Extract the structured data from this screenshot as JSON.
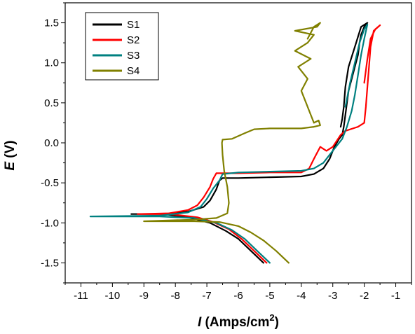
{
  "chart_data": {
    "type": "line",
    "xlabel_italic": "I",
    "xlabel_rest": " (Amps/cm",
    "xlabel_sup": "2",
    "xlabel_close": ")",
    "ylabel_italic": "E",
    "ylabel_rest": " (V)",
    "xlim": [
      -11.5,
      -0.5
    ],
    "ylim": [
      -1.75,
      1.75
    ],
    "x_ticks": [
      -11,
      -10,
      -9,
      -8,
      -7,
      -6,
      -5,
      -4,
      -3,
      -2,
      -1
    ],
    "x_tick_labels": [
      "-11",
      "-10",
      "-9",
      "-8",
      "-7",
      "-6",
      "-5",
      "-4",
      "-3",
      "-2",
      "-1"
    ],
    "y_ticks": [
      -1.5,
      -1.0,
      -0.5,
      0.0,
      0.5,
      1.0,
      1.5
    ],
    "y_tick_labels": [
      "-1.5",
      "-1.0",
      "-0.5",
      "0.0",
      "0.5",
      "1.0",
      "1.5"
    ],
    "grid": false,
    "legend_position": "top-left",
    "series": [
      {
        "name": "S1",
        "color": "#000000",
        "points": [
          [
            -5.2,
            -1.5
          ],
          [
            -5.6,
            -1.35
          ],
          [
            -6.0,
            -1.2
          ],
          [
            -6.4,
            -1.1
          ],
          [
            -6.9,
            -1.0
          ],
          [
            -7.6,
            -0.93
          ],
          [
            -8.4,
            -0.89
          ],
          [
            -9.4,
            -0.89
          ],
          [
            -8.4,
            -0.89
          ],
          [
            -7.6,
            -0.86
          ],
          [
            -7.1,
            -0.8
          ],
          [
            -6.9,
            -0.72
          ],
          [
            -6.7,
            -0.58
          ],
          [
            -6.6,
            -0.47
          ],
          [
            -6.5,
            -0.44
          ],
          [
            -6.0,
            -0.44
          ],
          [
            -5.0,
            -0.43
          ],
          [
            -4.0,
            -0.42
          ],
          [
            -3.6,
            -0.39
          ],
          [
            -3.3,
            -0.32
          ],
          [
            -3.1,
            -0.2
          ],
          [
            -2.95,
            -0.05
          ],
          [
            -2.8,
            0.05
          ],
          [
            -2.7,
            0.1
          ],
          [
            -2.65,
            0.2
          ],
          [
            -2.6,
            0.35
          ],
          [
            -2.55,
            0.5
          ],
          [
            -2.5,
            0.65
          ],
          [
            -2.4,
            0.8
          ],
          [
            -2.3,
            0.95
          ],
          [
            -2.2,
            1.1
          ],
          [
            -2.15,
            1.25
          ],
          [
            -2.1,
            1.35
          ],
          [
            -2.0,
            1.45
          ],
          [
            -1.9,
            1.5
          ],
          [
            -2.1,
            1.45
          ],
          [
            -2.3,
            1.2
          ],
          [
            -2.5,
            0.95
          ],
          [
            -2.6,
            0.7
          ],
          [
            -2.65,
            0.45
          ],
          [
            -2.7,
            0.3
          ],
          [
            -2.75,
            0.2
          ]
        ]
      },
      {
        "name": "S2",
        "color": "#ff0000",
        "points": [
          [
            -5.1,
            -1.5
          ],
          [
            -5.5,
            -1.35
          ],
          [
            -5.9,
            -1.2
          ],
          [
            -6.3,
            -1.08
          ],
          [
            -6.8,
            -0.99
          ],
          [
            -7.3,
            -0.93
          ],
          [
            -8.2,
            -0.89
          ],
          [
            -9.2,
            -0.89
          ],
          [
            -8.2,
            -0.88
          ],
          [
            -7.6,
            -0.84
          ],
          [
            -7.3,
            -0.78
          ],
          [
            -7.1,
            -0.68
          ],
          [
            -6.9,
            -0.55
          ],
          [
            -6.8,
            -0.45
          ],
          [
            -6.7,
            -0.38
          ],
          [
            -6.0,
            -0.38
          ],
          [
            -5.0,
            -0.37
          ],
          [
            -4.0,
            -0.37
          ],
          [
            -3.75,
            -0.32
          ],
          [
            -3.6,
            -0.2
          ],
          [
            -3.4,
            -0.05
          ],
          [
            -3.2,
            -0.1
          ],
          [
            -3.0,
            -0.05
          ],
          [
            -2.75,
            0.1
          ],
          [
            -2.6,
            0.15
          ],
          [
            -2.2,
            0.2
          ],
          [
            -2.0,
            0.25
          ],
          [
            -1.95,
            0.45
          ],
          [
            -1.9,
            0.7
          ],
          [
            -1.85,
            0.95
          ],
          [
            -1.8,
            1.2
          ],
          [
            -1.7,
            1.4
          ],
          [
            -1.5,
            1.47
          ],
          [
            -1.65,
            1.42
          ],
          [
            -1.8,
            1.3
          ],
          [
            -1.9,
            1.05
          ],
          [
            -2.0,
            0.75
          ]
        ]
      },
      {
        "name": "S3",
        "color": "#008080",
        "points": [
          [
            -5.0,
            -1.5
          ],
          [
            -5.4,
            -1.35
          ],
          [
            -5.8,
            -1.2
          ],
          [
            -6.2,
            -1.09
          ],
          [
            -6.7,
            -1.0
          ],
          [
            -7.4,
            -0.94
          ],
          [
            -8.5,
            -0.92
          ],
          [
            -10.7,
            -0.92
          ],
          [
            -8.5,
            -0.91
          ],
          [
            -7.6,
            -0.87
          ],
          [
            -7.2,
            -0.8
          ],
          [
            -7.0,
            -0.7
          ],
          [
            -6.8,
            -0.57
          ],
          [
            -6.6,
            -0.47
          ],
          [
            -6.5,
            -0.39
          ],
          [
            -6.0,
            -0.37
          ],
          [
            -5.0,
            -0.36
          ],
          [
            -4.0,
            -0.35
          ],
          [
            -3.6,
            -0.32
          ],
          [
            -3.3,
            -0.25
          ],
          [
            -3.1,
            -0.15
          ],
          [
            -2.9,
            -0.05
          ],
          [
            -2.7,
            0.05
          ],
          [
            -2.55,
            0.2
          ],
          [
            -2.4,
            0.4
          ],
          [
            -2.3,
            0.6
          ],
          [
            -2.2,
            0.85
          ],
          [
            -2.1,
            1.1
          ],
          [
            -2.0,
            1.3
          ],
          [
            -1.9,
            1.48
          ],
          [
            -2.0,
            1.42
          ],
          [
            -2.15,
            1.25
          ],
          [
            -2.3,
            1.0
          ],
          [
            -2.45,
            0.75
          ],
          [
            -2.6,
            0.45
          ]
        ]
      },
      {
        "name": "S4",
        "color": "#808000",
        "points": [
          [
            -4.4,
            -1.5
          ],
          [
            -4.8,
            -1.35
          ],
          [
            -5.2,
            -1.22
          ],
          [
            -5.6,
            -1.12
          ],
          [
            -6.0,
            -1.04
          ],
          [
            -6.6,
            -0.99
          ],
          [
            -7.4,
            -0.98
          ],
          [
            -9.0,
            -0.98
          ],
          [
            -7.4,
            -0.96
          ],
          [
            -6.7,
            -0.94
          ],
          [
            -6.35,
            -0.88
          ],
          [
            -6.3,
            -0.75
          ],
          [
            -6.35,
            -0.55
          ],
          [
            -6.45,
            -0.35
          ],
          [
            -6.5,
            -0.15
          ],
          [
            -6.52,
            0.0
          ],
          [
            -6.5,
            0.04
          ],
          [
            -6.2,
            0.05
          ],
          [
            -5.8,
            0.12
          ],
          [
            -5.5,
            0.17
          ],
          [
            -5.0,
            0.18
          ],
          [
            -4.0,
            0.18
          ],
          [
            -3.6,
            0.2
          ],
          [
            -3.4,
            0.22
          ],
          [
            -3.45,
            0.28
          ],
          [
            -3.6,
            0.25
          ],
          [
            -3.7,
            0.35
          ],
          [
            -3.85,
            0.5
          ],
          [
            -4.0,
            0.65
          ],
          [
            -3.8,
            0.8
          ],
          [
            -4.1,
            0.95
          ],
          [
            -3.7,
            1.05
          ],
          [
            -4.2,
            1.15
          ],
          [
            -3.8,
            1.25
          ],
          [
            -3.6,
            1.35
          ],
          [
            -4.2,
            1.4
          ],
          [
            -3.5,
            1.45
          ],
          [
            -3.4,
            1.5
          ],
          [
            -3.6,
            1.45
          ],
          [
            -3.8,
            1.3
          ]
        ]
      }
    ]
  }
}
